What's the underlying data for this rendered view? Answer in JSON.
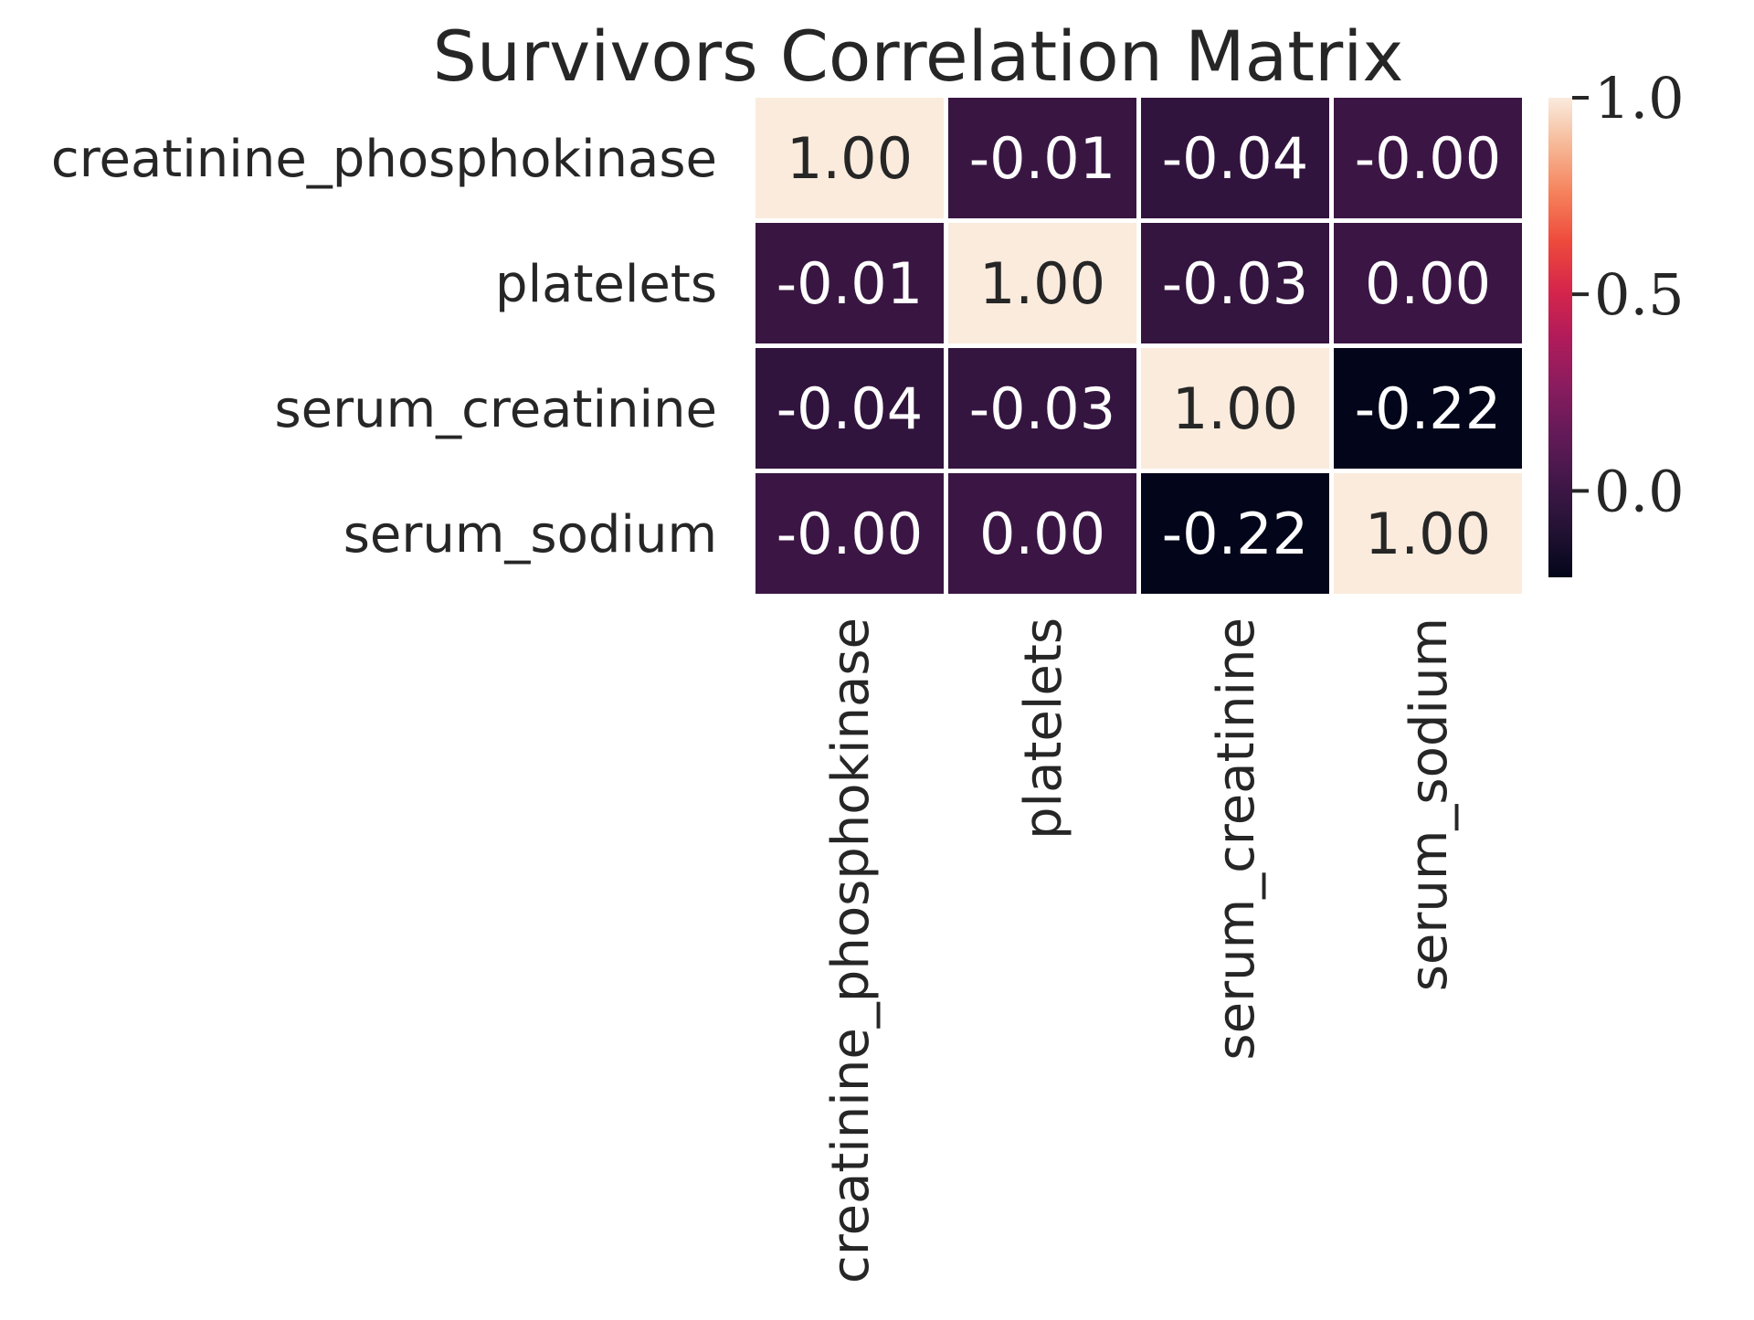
{
  "chart_data": {
    "type": "heatmap",
    "title": "Survivors Correlation Matrix",
    "row_labels": [
      "creatinine_phosphokinase",
      "platelets",
      "serum_creatinine",
      "serum_sodium"
    ],
    "col_labels": [
      "creatinine_phosphokinase",
      "platelets",
      "serum_creatinine",
      "serum_sodium"
    ],
    "values": [
      [
        1.0,
        -0.01,
        -0.04,
        -0.0
      ],
      [
        -0.01,
        1.0,
        -0.03,
        0.0
      ],
      [
        -0.04,
        -0.03,
        1.0,
        -0.22
      ],
      [
        -0.0,
        0.0,
        -0.22,
        1.0
      ]
    ],
    "value_labels": [
      [
        "1.00",
        "-0.01",
        "-0.04",
        "-0.00"
      ],
      [
        "-0.01",
        "1.00",
        "-0.03",
        "0.00"
      ],
      [
        "-0.04",
        "-0.03",
        "1.00",
        "-0.22"
      ],
      [
        "-0.00",
        "0.00",
        "-0.22",
        "1.00"
      ]
    ],
    "colormap": "rocket",
    "vmin": -0.22,
    "vmax": 1.0,
    "colorbar": {
      "ticks": [
        1.0,
        0.5,
        0.0
      ],
      "tick_labels": [
        "1.0",
        "0.5",
        "0.0"
      ]
    },
    "xlabel": "",
    "ylabel": "",
    "grid": false,
    "legend": "colorbar-right"
  }
}
